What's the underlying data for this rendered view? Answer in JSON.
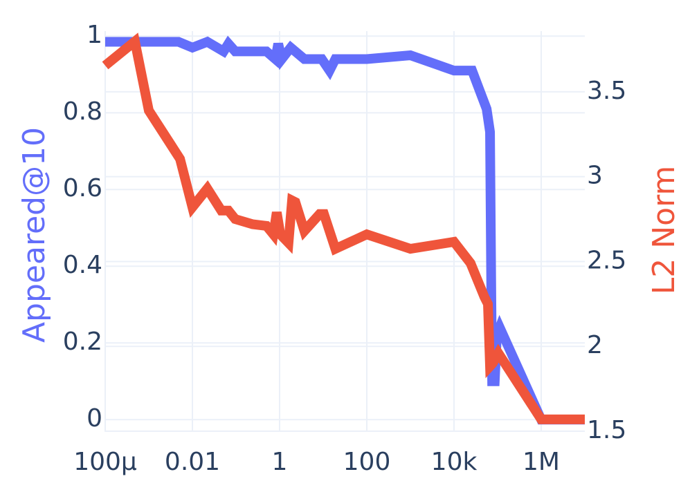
{
  "chart_data": {
    "type": "line",
    "x_scale": "log",
    "grid": true,
    "xlim": [
      0.0001,
      10000000
    ],
    "xticks": [
      {
        "value": 0.0001,
        "label": "100μ"
      },
      0.01,
      1,
      100,
      {
        "value": 10000,
        "label": "10k"
      },
      {
        "value": 1000000,
        "label": "1M"
      }
    ],
    "ylabel": "Appeared@10",
    "ylim": [
      -0.032,
      1.013
    ],
    "yticks": [
      0,
      0.2,
      0.4,
      0.6,
      0.8,
      1
    ],
    "y2label": "L2 Norm",
    "y2lim": [
      1.496,
      3.858
    ],
    "y2ticks": [
      1.5,
      2,
      2.5,
      3,
      3.5
    ],
    "series": [
      {
        "name": "Appeared@10",
        "color": "#636efa",
        "axis": "y",
        "x": [
          0.0001,
          0.00048,
          0.0048,
          0.01,
          0.022,
          0.052,
          0.067,
          0.096,
          0.5,
          0.8,
          0.93,
          1.12,
          1.8,
          3.7,
          9.3,
          14,
          19,
          100,
          1000,
          10000,
          26000,
          56000,
          67000,
          72000,
          75000,
          86000,
          96000,
          112000,
          1000000,
          10000000
        ],
        "values": [
          0.985,
          0.985,
          0.985,
          0.97,
          0.985,
          0.96,
          0.98,
          0.96,
          0.96,
          0.94,
          0.98,
          0.94,
          0.97,
          0.94,
          0.94,
          0.91,
          0.94,
          0.94,
          0.95,
          0.91,
          0.91,
          0.81,
          0.75,
          0.3,
          0.1,
          0.1,
          0.22,
          0.24,
          0,
          0
        ]
      },
      {
        "name": "L2 Norm",
        "color": "#ef553b",
        "axis": "y2",
        "x": [
          0.0001,
          0.00048,
          0.001,
          0.0052,
          0.01,
          0.022,
          0.046,
          0.067,
          0.096,
          0.24,
          0.5,
          0.72,
          0.86,
          1.04,
          1.6,
          1.93,
          2.3,
          3.7,
          8.3,
          10.4,
          19,
          100,
          1000,
          10000,
          24000,
          50000,
          60000,
          67000,
          77000,
          104000,
          1000000,
          10000000
        ],
        "values": [
          3.655,
          3.797,
          3.39,
          3.105,
          2.82,
          2.93,
          2.8,
          2.8,
          2.75,
          2.72,
          2.71,
          2.66,
          2.79,
          2.66,
          2.61,
          2.86,
          2.85,
          2.68,
          2.78,
          2.78,
          2.575,
          2.66,
          2.575,
          2.616,
          2.49,
          2.29,
          2.25,
          1.883,
          1.9,
          1.96,
          1.57,
          1.57
        ]
      }
    ]
  }
}
